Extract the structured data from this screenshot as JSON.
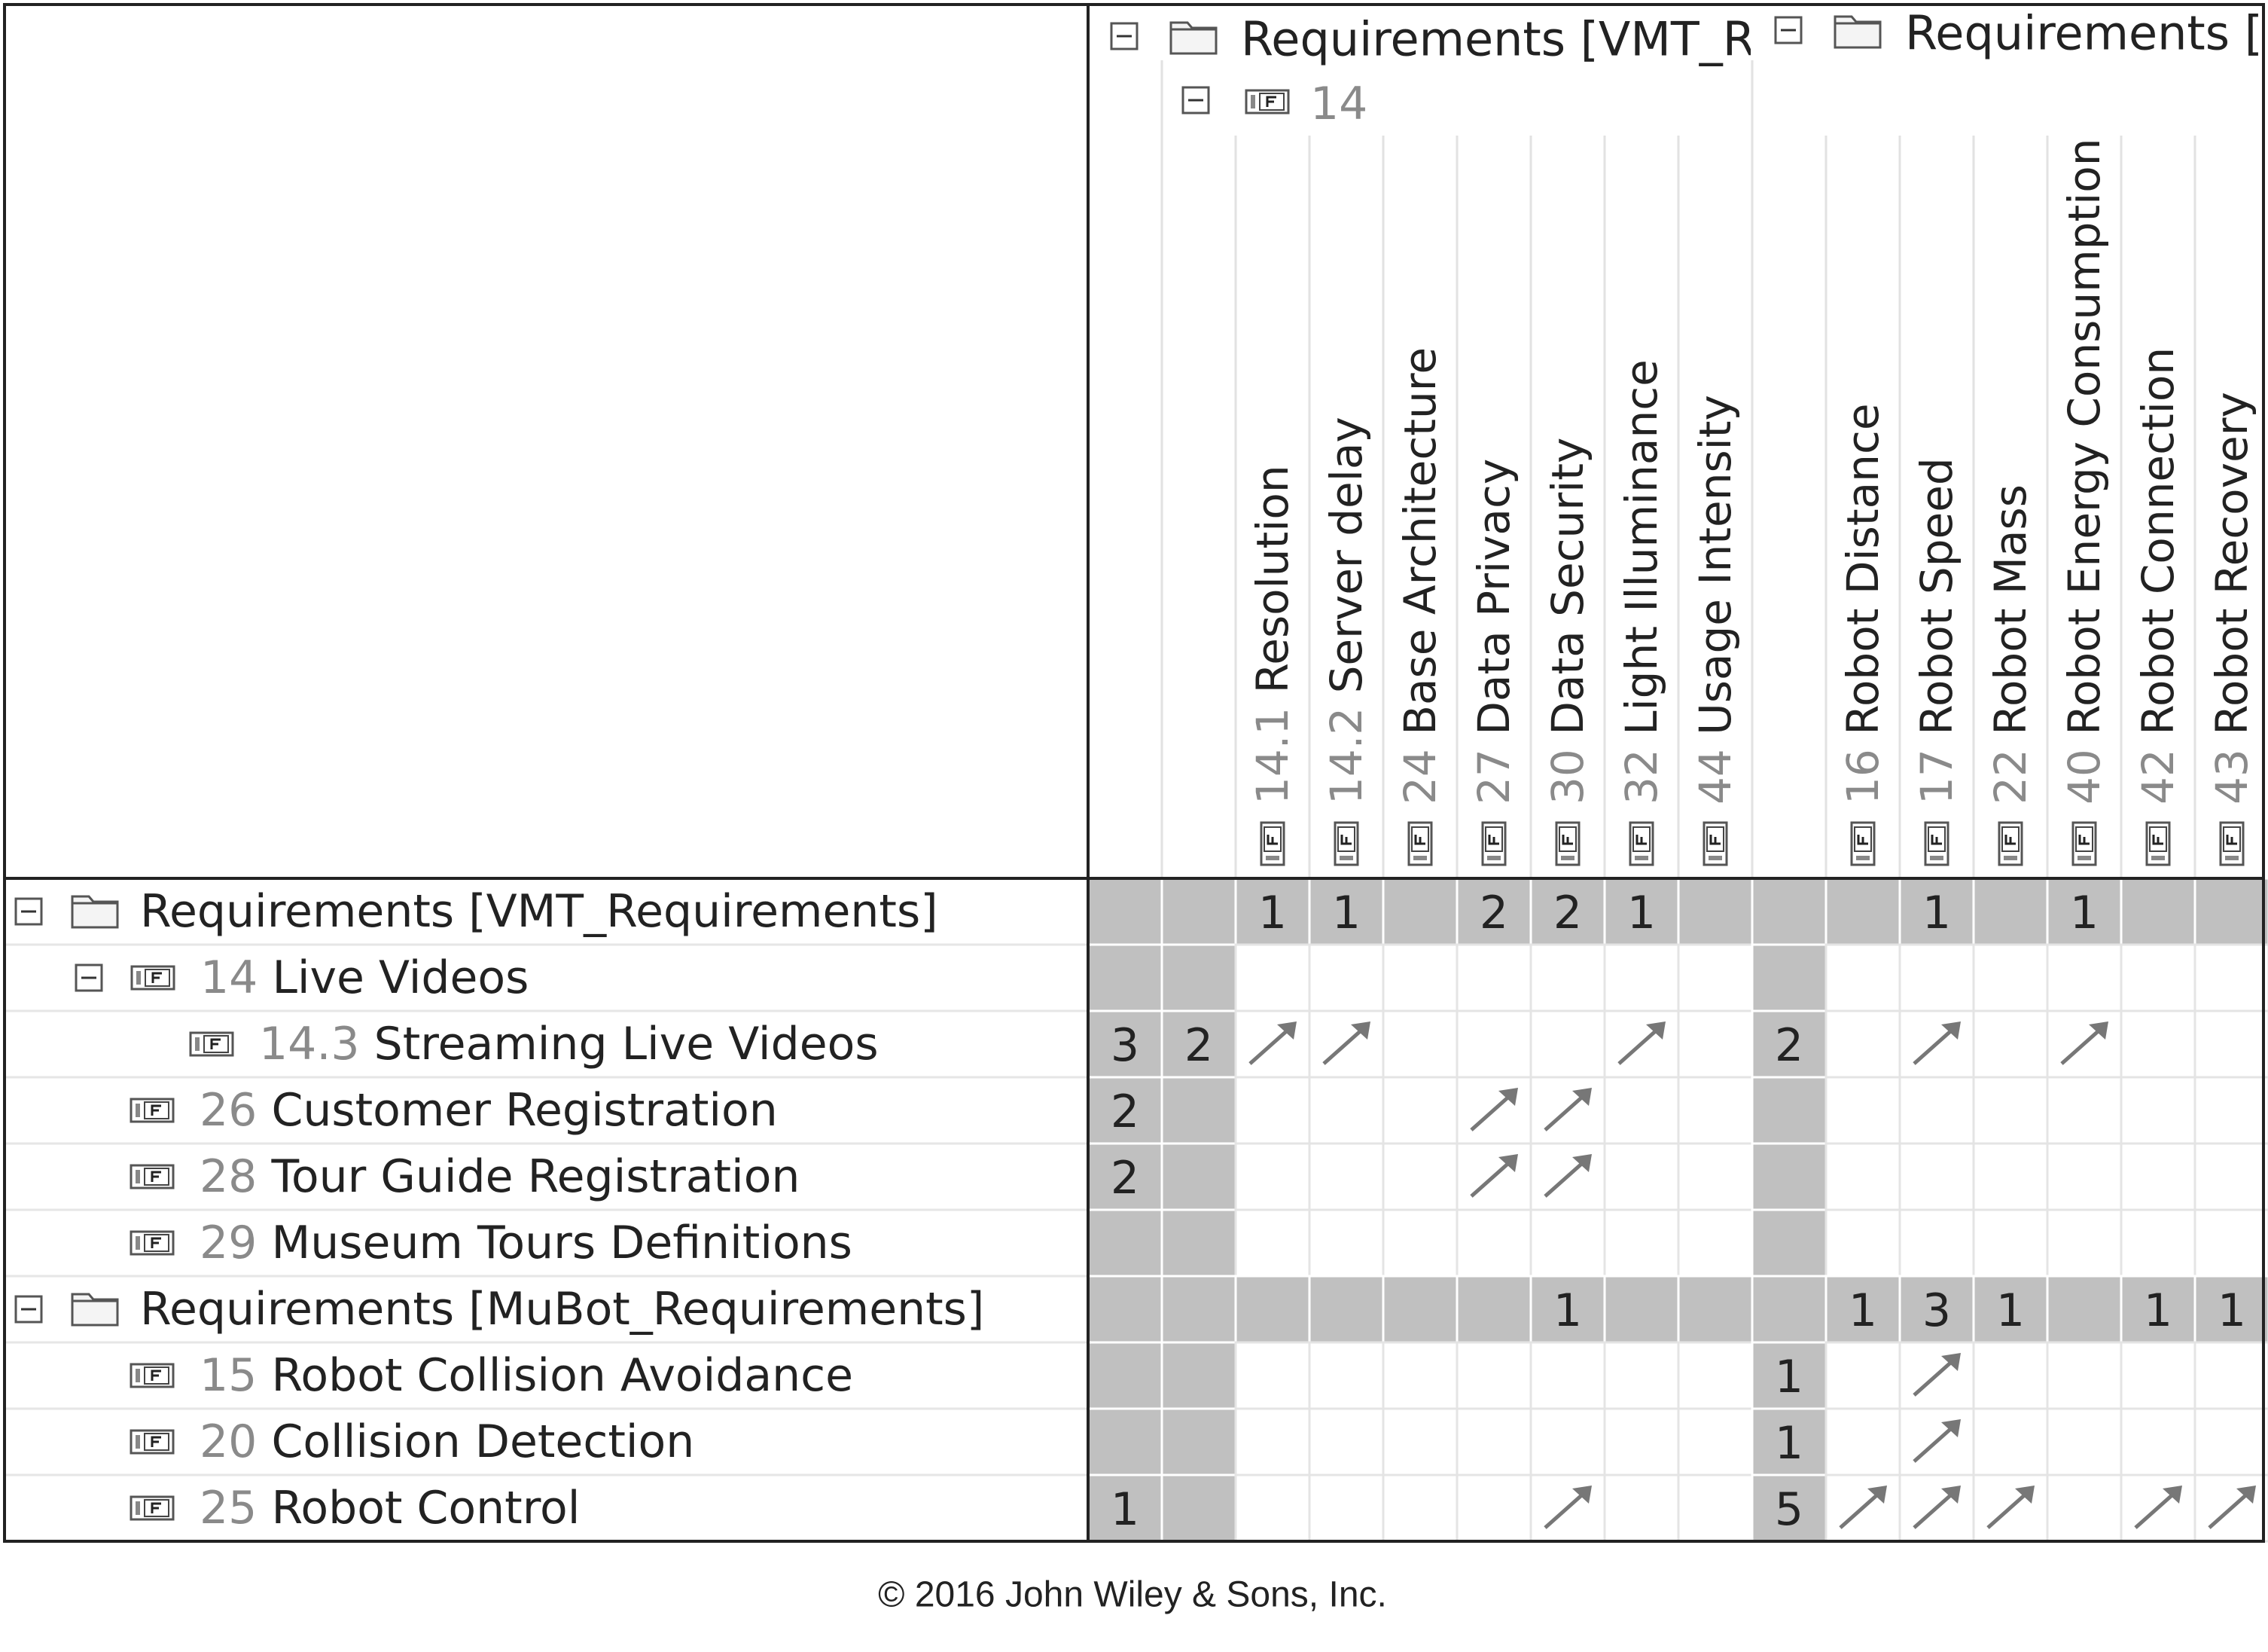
{
  "group_headers": [
    {
      "name": "Requirements [VMT_Re",
      "expanded": true
    },
    {
      "name": "Requirements [M",
      "expanded": true
    }
  ],
  "subgroup_header": {
    "id": "14",
    "expanded": true
  },
  "columns": [
    null,
    null,
    {
      "id": "14.1",
      "name": "Resolution"
    },
    {
      "id": "14.2",
      "name": "Server delay"
    },
    {
      "id": "24",
      "name": "Base Architecture"
    },
    {
      "id": "27",
      "name": "Data Privacy"
    },
    {
      "id": "30",
      "name": "Data Security"
    },
    {
      "id": "32",
      "name": "Light Illuminance"
    },
    {
      "id": "44",
      "name": "Usage Intensity"
    },
    null,
    {
      "id": "16",
      "name": "Robot Distance"
    },
    {
      "id": "17",
      "name": "Robot Speed"
    },
    {
      "id": "22",
      "name": "Robot Mass"
    },
    {
      "id": "40",
      "name": "Robot Energy Consumption"
    },
    {
      "id": "42",
      "name": "Robot Connection"
    },
    {
      "id": "43",
      "name": "Robot Recovery"
    }
  ],
  "rows": [
    {
      "name": "Requirements [VMT_Requirements]",
      "level": 0,
      "expanded": true,
      "cells": [
        null,
        null,
        1,
        1,
        null,
        2,
        2,
        1,
        null,
        null,
        null,
        1,
        null,
        1,
        null,
        null
      ]
    },
    {
      "id": "14",
      "name": "Live Videos",
      "level": 1,
      "expanded": true,
      "cells": [
        null,
        null,
        null,
        null,
        null,
        null,
        null,
        null,
        null,
        null,
        null,
        null,
        null,
        null,
        null,
        null
      ]
    },
    {
      "id": "14.3",
      "name": "Streaming Live Videos",
      "level": 2,
      "cells": [
        3,
        2,
        true,
        true,
        null,
        null,
        null,
        true,
        null,
        2,
        null,
        true,
        null,
        true,
        null,
        null
      ]
    },
    {
      "id": "26",
      "name": "Customer Registration",
      "level": 1,
      "cells": [
        2,
        null,
        null,
        null,
        null,
        true,
        true,
        null,
        null,
        null,
        null,
        null,
        null,
        null,
        null,
        null
      ]
    },
    {
      "id": "28",
      "name": "Tour Guide Registration",
      "level": 1,
      "cells": [
        2,
        null,
        null,
        null,
        null,
        true,
        true,
        null,
        null,
        null,
        null,
        null,
        null,
        null,
        null,
        null
      ]
    },
    {
      "id": "29",
      "name": "Museum Tours Definitions",
      "level": 1,
      "cells": [
        null,
        null,
        null,
        null,
        null,
        null,
        null,
        null,
        null,
        null,
        null,
        null,
        null,
        null,
        null,
        null
      ]
    },
    {
      "name": "Requirements [MuBot_Requirements]",
      "level": 0,
      "expanded": true,
      "cells": [
        null,
        null,
        null,
        null,
        null,
        null,
        1,
        null,
        null,
        null,
        1,
        3,
        1,
        null,
        1,
        1
      ]
    },
    {
      "id": "15",
      "name": "Robot Collision Avoidance",
      "level": 1,
      "cells": [
        null,
        null,
        null,
        null,
        null,
        null,
        null,
        null,
        null,
        1,
        null,
        true,
        null,
        null,
        null,
        null
      ]
    },
    {
      "id": "20",
      "name": "Collision Detection",
      "level": 1,
      "cells": [
        null,
        null,
        null,
        null,
        null,
        null,
        null,
        null,
        null,
        1,
        null,
        true,
        null,
        null,
        null,
        null
      ]
    },
    {
      "id": "25",
      "name": "Robot Control",
      "level": 1,
      "cells": [
        1,
        null,
        null,
        null,
        null,
        null,
        true,
        null,
        null,
        5,
        true,
        true,
        true,
        null,
        true,
        true
      ]
    }
  ],
  "footer": "© 2016 John Wiley & Sons, Inc."
}
